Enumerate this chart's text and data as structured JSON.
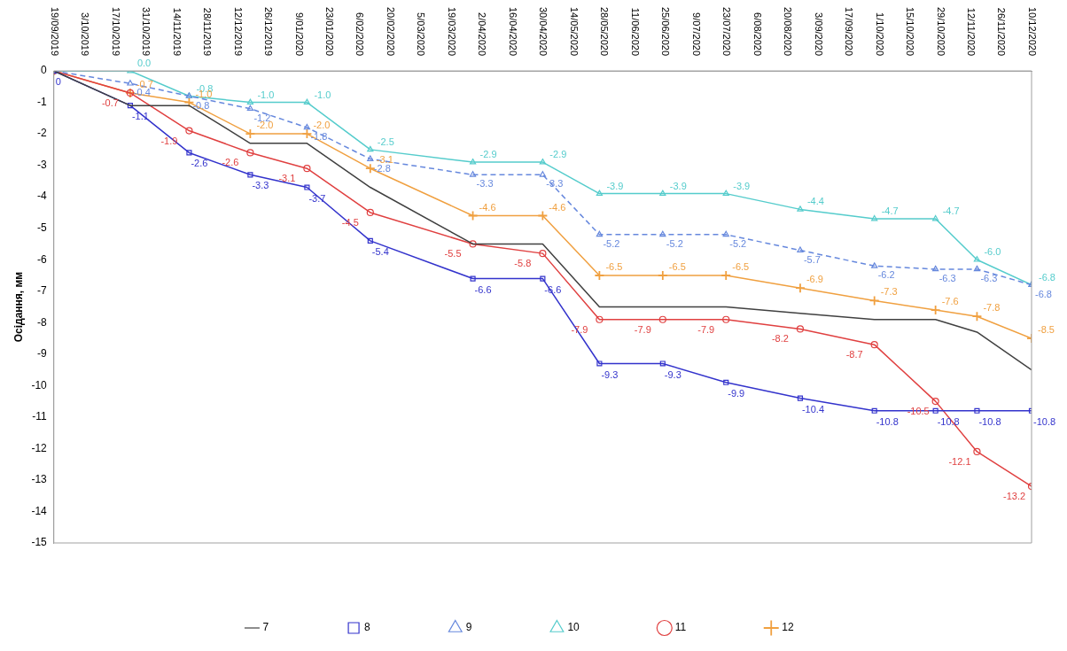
{
  "chart_data": {
    "type": "line",
    "ylabel": "Осідання, мм",
    "x": [
      "2019-09-19",
      "2019-10-24",
      "2019-11-20",
      "2019-12-18",
      "2020-01-13",
      "2020-02-11",
      "2020-03-29",
      "2020-04-30",
      "2020-05-26",
      "2020-06-24",
      "2020-07-23",
      "2020-08-26",
      "2020-09-29",
      "2020-10-27",
      "2020-11-15",
      "2020-12-10"
    ],
    "xlim": [
      "2019-09-19",
      "2020-12-10"
    ],
    "xticks": [
      {
        "value": "2019-09-19",
        "label": "19/09/2019"
      },
      {
        "value": "2019-10-03",
        "label": "3/10/2019"
      },
      {
        "value": "2019-10-17",
        "label": "17/10/2019"
      },
      {
        "value": "2019-10-31",
        "label": "31/10/2019"
      },
      {
        "value": "2019-11-14",
        "label": "14/11/2019"
      },
      {
        "value": "2019-11-28",
        "label": "28/11/2019"
      },
      {
        "value": "2019-12-12",
        "label": "12/12/2019"
      },
      {
        "value": "2019-12-26",
        "label": "26/12/2019"
      },
      {
        "value": "2020-01-09",
        "label": "9/01/2020"
      },
      {
        "value": "2020-01-23",
        "label": "23/01/2020"
      },
      {
        "value": "2020-02-06",
        "label": "6/02/2020"
      },
      {
        "value": "2020-02-20",
        "label": "20/02/2020"
      },
      {
        "value": "2020-03-05",
        "label": "5/03/2020"
      },
      {
        "value": "2020-03-19",
        "label": "19/03/2020"
      },
      {
        "value": "2020-04-02",
        "label": "2/04/2020"
      },
      {
        "value": "2020-04-16",
        "label": "16/04/2020"
      },
      {
        "value": "2020-04-30",
        "label": "30/04/2020"
      },
      {
        "value": "2020-05-14",
        "label": "14/05/2020"
      },
      {
        "value": "2020-05-28",
        "label": "28/05/2020"
      },
      {
        "value": "2020-06-11",
        "label": "11/06/2020"
      },
      {
        "value": "2020-06-25",
        "label": "25/06/2020"
      },
      {
        "value": "2020-07-09",
        "label": "9/07/2020"
      },
      {
        "value": "2020-07-23",
        "label": "23/07/2020"
      },
      {
        "value": "2020-08-06",
        "label": "6/08/2020"
      },
      {
        "value": "2020-08-20",
        "label": "20/08/2020"
      },
      {
        "value": "2020-09-03",
        "label": "3/09/2020"
      },
      {
        "value": "2020-09-17",
        "label": "17/09/2020"
      },
      {
        "value": "2020-10-01",
        "label": "1/10/2020"
      },
      {
        "value": "2020-10-15",
        "label": "15/10/2020"
      },
      {
        "value": "2020-10-29",
        "label": "29/10/2020"
      },
      {
        "value": "2020-11-12",
        "label": "12/11/2020"
      },
      {
        "value": "2020-11-26",
        "label": "26/11/2020"
      },
      {
        "value": "2020-12-10",
        "label": "10/12/2020"
      }
    ],
    "ylim": [
      -15,
      0
    ],
    "yticks": [
      0,
      -1,
      -2,
      -3,
      -4,
      -5,
      -6,
      -7,
      -8,
      -9,
      -10,
      -11,
      -12,
      -13,
      -14,
      -15
    ],
    "grid": false,
    "legend": "bottom",
    "series": [
      {
        "name": "7",
        "color": "#404040",
        "marker": "none",
        "line_style": "solid",
        "values": [
          0,
          -1.1,
          -1.1,
          -2.3,
          -2.3,
          -3.7,
          -5.5,
          -5.5,
          -7.5,
          -7.5,
          -7.5,
          -7.7,
          -7.9,
          -7.9,
          -8.3,
          -9.5
        ]
      },
      {
        "name": "8",
        "color": "#3333cc",
        "marker": "square",
        "line_style": "solid",
        "values": [
          0,
          -1.1,
          -2.6,
          -3.3,
          -3.7,
          -5.4,
          -6.6,
          -6.6,
          -9.3,
          -9.3,
          -9.9,
          -10.4,
          -10.8,
          -10.8,
          -10.8,
          -10.8
        ],
        "value_labels": [
          "0",
          "-1.1",
          "-2.6",
          "-3.3",
          "-3.7",
          "-5.4",
          "-6.6",
          "-6.6",
          "-9.3",
          "-9.3",
          "-9.9",
          "-10.4",
          "-10.8",
          "-10.8",
          "-10.8",
          "-10.8"
        ]
      },
      {
        "name": "9",
        "color": "#6688dd",
        "marker": "triangle",
        "line_style": "dashed",
        "values": [
          0,
          -0.4,
          -0.8,
          -1.2,
          -1.8,
          -2.8,
          -3.3,
          -3.3,
          -5.2,
          -5.2,
          -5.2,
          -5.7,
          -6.2,
          -6.3,
          -6.3,
          -6.8
        ],
        "value_labels": [
          null,
          "-0.4",
          "-0.8",
          "-1.2",
          "-1.8",
          "-2.8",
          "-3.3",
          "-3.3",
          "-5.2",
          "-5.2",
          "-5.2",
          "-5.7",
          "-6.2",
          "-6.3",
          "-6.3",
          "-6.8"
        ]
      },
      {
        "name": "10",
        "color": "#55cccc",
        "marker": "triangle",
        "line_style": "solid",
        "values": [
          0,
          0.0,
          -0.8,
          -1.0,
          -1.0,
          -2.5,
          -2.9,
          -2.9,
          -3.9,
          -3.9,
          -3.9,
          -4.4,
          -4.7,
          -4.7,
          -6.0,
          -6.8
        ],
        "value_labels": [
          null,
          "0.0",
          "-0.8",
          "-1.0",
          "-1.0",
          "-2.5",
          "-2.9",
          "-2.9",
          "-3.9",
          "-3.9",
          "-3.9",
          "-4.4",
          "-4.7",
          "-4.7",
          "-6.0",
          "-6.8"
        ]
      },
      {
        "name": "11",
        "color": "#e04040",
        "marker": "circle",
        "line_style": "solid",
        "values": [
          0,
          -0.7,
          -1.9,
          -2.6,
          -3.1,
          -4.5,
          -5.5,
          -5.8,
          -7.9,
          -7.9,
          -7.9,
          -8.2,
          -8.7,
          -10.5,
          -12.1,
          -13.2
        ],
        "value_labels": [
          null,
          "-0.7",
          "-1.9",
          "-2.6",
          "-3.1",
          "-4.5",
          "-5.5",
          "-5.8",
          "-7.9",
          "-7.9",
          "-7.9",
          "-8.2",
          "-8.7",
          "-10.5",
          "-12.1",
          "-13.2"
        ]
      },
      {
        "name": "12",
        "color": "#f0a040",
        "marker": "cross",
        "line_style": "solid",
        "values": [
          0,
          -0.7,
          -1.0,
          -2.0,
          -2.0,
          -3.1,
          -4.6,
          -4.6,
          -6.5,
          -6.5,
          -6.5,
          -6.9,
          -7.3,
          -7.6,
          -7.8,
          -8.5
        ],
        "value_labels": [
          null,
          "-0.7",
          "-1.0",
          "-2.0",
          "-2.0",
          "-3.1",
          "-4.6",
          "-4.6",
          "-6.5",
          "-6.5",
          "-6.5",
          "-6.9",
          "-7.3",
          "-7.6",
          "-7.8",
          "-8.5"
        ]
      }
    ]
  }
}
